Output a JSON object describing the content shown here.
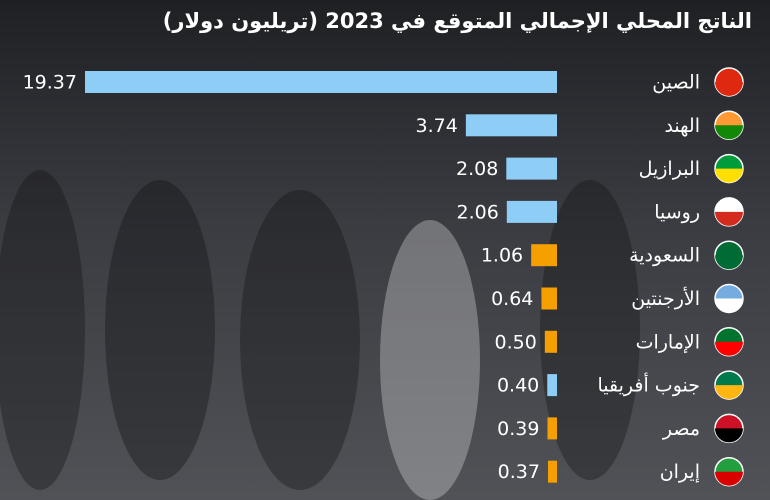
{
  "chart_data": {
    "type": "bar",
    "orientation": "horizontal",
    "title": "الناتج المحلي الإجمالي المتوقع في 2023 (تريليون دولار)",
    "categories": [
      "الصين",
      "الهند",
      "البرازيل",
      "روسيا",
      "السعودية",
      "الأرجنتين",
      "الإمارات",
      "جنوب أفريقيا",
      "مصر",
      "إيران"
    ],
    "values": [
      19.37,
      3.74,
      2.08,
      2.06,
      1.06,
      0.64,
      0.5,
      0.4,
      0.39,
      0.37
    ],
    "value_labels": [
      "19.37",
      "3.74",
      "2.08",
      "2.06",
      "1.06",
      "0.64",
      "0.50",
      "0.40",
      "0.39",
      "0.37"
    ],
    "colors": [
      "#8ecdf5",
      "#8ecdf5",
      "#8ecdf5",
      "#8ecdf5",
      "#f5a000",
      "#f5a000",
      "#f5a000",
      "#8ecdf5",
      "#f5a000",
      "#f5a000"
    ]
  }
}
